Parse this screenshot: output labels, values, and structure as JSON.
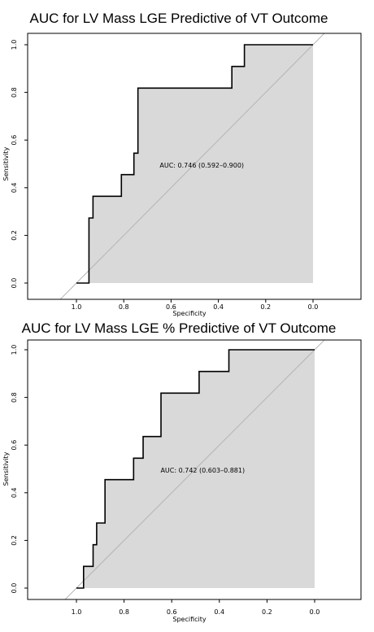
{
  "chart_data": [
    {
      "type": "line",
      "title": "AUC for LV Mass LGE Predictive of VT Outcome",
      "xlabel": "Specificity",
      "ylabel": "Sensitivity",
      "xlim": [
        1.0,
        0.0
      ],
      "ylim": [
        0.0,
        1.0
      ],
      "x_ticks": [
        "1.0",
        "0.8",
        "0.6",
        "0.4",
        "0.2",
        "0.0"
      ],
      "y_ticks": [
        "0.0",
        "0.2",
        "0.4",
        "0.6",
        "0.8",
        "1.0"
      ],
      "annotation": "AUC: 0.746 (0.592–0.900)",
      "grid": false,
      "series": [
        {
          "x": [
            1.0,
            0.947,
            0.947,
            0.93,
            0.93,
            0.81,
            0.81,
            0.757,
            0.757,
            0.74,
            0.74,
            0.343,
            0.343,
            0.29,
            0.29,
            0.0
          ],
          "y": [
            0.0,
            0.0,
            0.273,
            0.273,
            0.364,
            0.364,
            0.455,
            0.455,
            0.545,
            0.545,
            0.818,
            0.818,
            0.909,
            0.909,
            1.0,
            1.0
          ]
        }
      ]
    },
    {
      "type": "line",
      "title": "AUC for LV Mass LGE % Predictive of VT Outcome",
      "xlabel": "Specificity",
      "ylabel": "Sensitivity",
      "xlim": [
        1.0,
        0.0
      ],
      "ylim": [
        0.0,
        1.0
      ],
      "x_ticks": [
        "1.0",
        "0.8",
        "0.6",
        "0.4",
        "0.2",
        "0.0"
      ],
      "y_ticks": [
        "0.0",
        "0.2",
        "0.4",
        "0.6",
        "0.8",
        "1.0"
      ],
      "annotation": "AUC: 0.742 (0.603–0.881)",
      "grid": false,
      "series": [
        {
          "x": [
            1.0,
            0.97,
            0.97,
            0.93,
            0.93,
            0.915,
            0.915,
            0.88,
            0.88,
            0.76,
            0.76,
            0.72,
            0.72,
            0.645,
            0.645,
            0.485,
            0.485,
            0.36,
            0.36,
            0.0
          ],
          "y": [
            0.0,
            0.0,
            0.091,
            0.091,
            0.182,
            0.182,
            0.273,
            0.273,
            0.455,
            0.455,
            0.545,
            0.545,
            0.636,
            0.636,
            0.818,
            0.818,
            0.909,
            0.909,
            1.0,
            1.0
          ]
        }
      ]
    }
  ]
}
